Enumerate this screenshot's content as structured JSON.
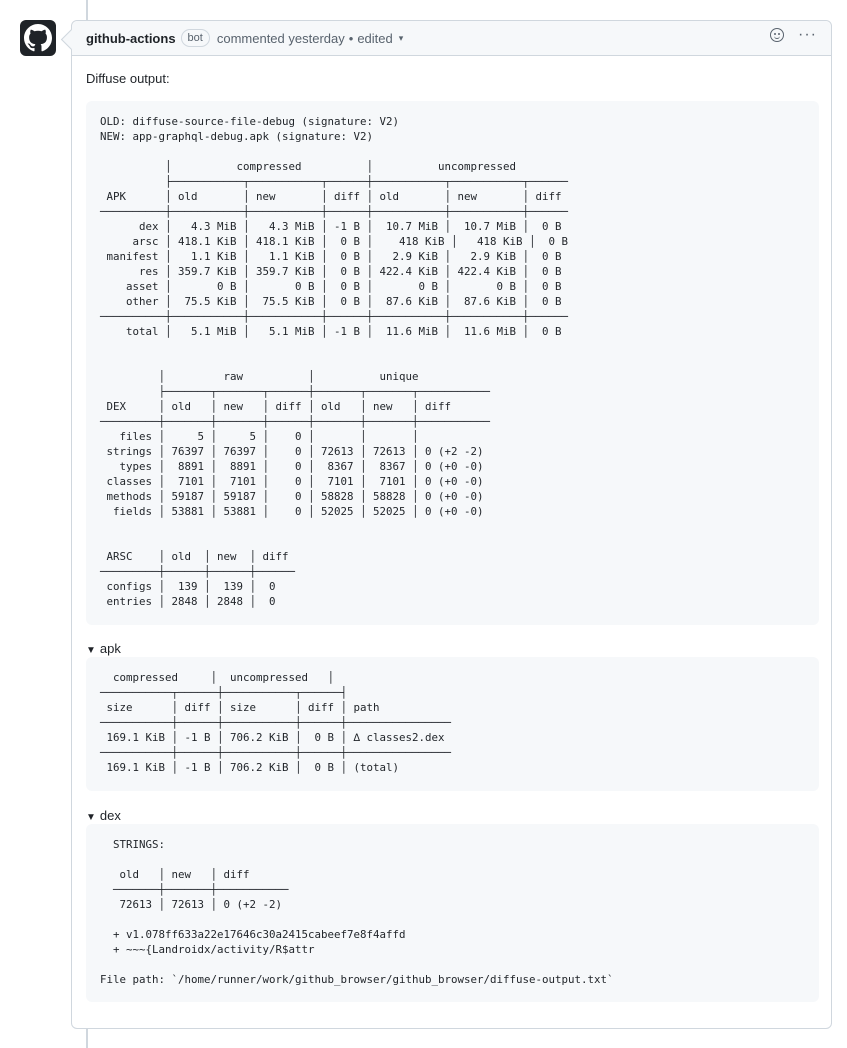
{
  "comment": {
    "author": "github-actions",
    "badge": "bot",
    "action": "commented yesterday",
    "dot": "•",
    "edited": "edited",
    "caret": "▾",
    "menu": "···"
  },
  "intro": "Diffuse output:",
  "summary_block": "OLD: diffuse-source-file-debug (signature: V2)\nNEW: app-graphql-debug.apk (signature: V2)\n\n          │          compressed          │          uncompressed           \n          ├───────────┬───────────┬──────┼───────────┬───────────┬──────\n APK      │ old       │ new       │ diff │ old       │ new       │ diff \n──────────┼───────────┼───────────┼──────┼───────────┼───────────┼──────\n      dex │   4.3 MiB │   4.3 MiB │ -1 B │  10.7 MiB │  10.7 MiB │  0 B \n     arsc │ 418.1 KiB │ 418.1 KiB │  0 B │    418 KiB │   418 KiB │  0 B \n manifest │   1.1 KiB │   1.1 KiB │  0 B │   2.9 KiB │   2.9 KiB │  0 B \n      res │ 359.7 KiB │ 359.7 KiB │  0 B │ 422.4 KiB │ 422.4 KiB │  0 B \n    asset │       0 B │       0 B │  0 B │       0 B │       0 B │  0 B \n    other │  75.5 KiB │  75.5 KiB │  0 B │  87.6 KiB │  87.6 KiB │  0 B \n──────────┼───────────┼───────────┼──────┼───────────┼───────────┼──────\n    total │   5.1 MiB │   5.1 MiB │ -1 B │  11.6 MiB │  11.6 MiB │  0 B \n\n\n         │         raw          │          unique           \n         ├───────┬───────┬──────┼───────┬───────┬───────────\n DEX     │ old   │ new   │ diff │ old   │ new   │ diff      \n─────────┼───────┼───────┼──────┼───────┼───────┼───────────\n   files │     5 │     5 │    0 │       │       │           \n strings │ 76397 │ 76397 │    0 │ 72613 │ 72613 │ 0 (+2 -2) \n   types │  8891 │  8891 │    0 │  8367 │  8367 │ 0 (+0 -0) \n classes │  7101 │  7101 │    0 │  7101 │  7101 │ 0 (+0 -0) \n methods │ 59187 │ 59187 │    0 │ 58828 │ 58828 │ 0 (+0 -0) \n  fields │ 53881 │ 53881 │    0 │ 52025 │ 52025 │ 0 (+0 -0) \n\n\n ARSC    │ old  │ new  │ diff \n─────────┼──────┼──────┼──────\n configs │  139 │  139 │  0   \n entries │ 2848 │ 2848 │  0   ",
  "apk_section": {
    "summary": "apk",
    "triangle": "▼",
    "block": "  compressed     │  uncompressed   │           \n───────────┬──────┼───────────┬──────┤           \n size      │ diff │ size      │ diff │ path      \n───────────┼──────┼───────────┼──────┼────────────────\n 169.1 KiB │ -1 B │ 706.2 KiB │  0 B │ ∆ classes2.dex \n───────────┼──────┼───────────┼──────┼────────────────\n 169.1 KiB │ -1 B │ 706.2 KiB │  0 B │ (total)        "
  },
  "dex_section": {
    "summary": "dex",
    "triangle": "▼",
    "block": "  STRINGS:\n\n   old   │ new   │ diff      \n  ───────┼───────┼───────────\n   72613 │ 72613 │ 0 (+2 -2) \n\n  + v1.078ff633a22e17646c30a2415cabeef7e8f4affd\n  + ~~~{Landroidx/activity/R$attr\n\nFile path: `/home/runner/work/github_browser/github_browser/diffuse-output.txt`"
  }
}
